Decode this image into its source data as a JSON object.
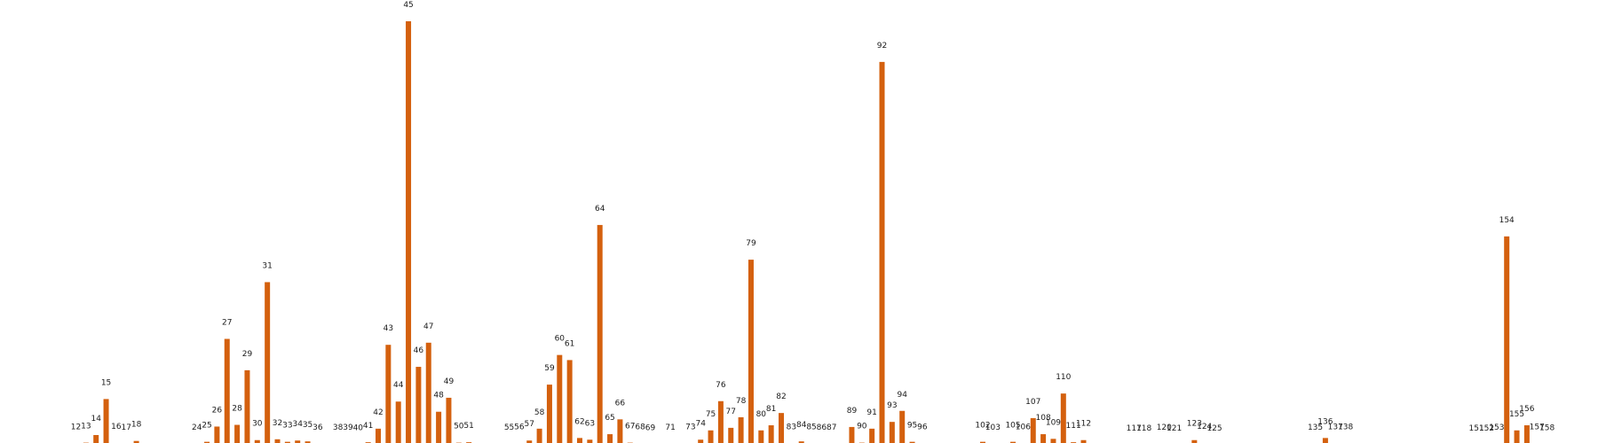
{
  "chart_data": {
    "type": "bar",
    "bar_color": "#d4600e",
    "background": "#ffffff",
    "axes_visible": false,
    "grid": false,
    "title": "",
    "xlabel": "",
    "ylabel": "",
    "ylim": [
      0,
      100
    ],
    "bars": [
      {
        "label": "12",
        "x": 12,
        "value": 0.3
      },
      {
        "label": "13",
        "x": 13,
        "value": 0.5
      },
      {
        "label": "14",
        "x": 14,
        "value": 2.3
      },
      {
        "label": "15",
        "x": 15,
        "value": 10.8
      },
      {
        "label": "16",
        "x": 16,
        "value": 0.4
      },
      {
        "label": "17",
        "x": 17,
        "value": 0.2
      },
      {
        "label": "18",
        "x": 18,
        "value": 0.9
      },
      {
        "label": "24",
        "x": 24,
        "value": 0.2
      },
      {
        "label": "25",
        "x": 25,
        "value": 0.7
      },
      {
        "label": "26",
        "x": 26,
        "value": 4.3
      },
      {
        "label": "27",
        "x": 27,
        "value": 25.0
      },
      {
        "label": "28",
        "x": 28,
        "value": 4.7
      },
      {
        "label": "29",
        "x": 29,
        "value": 17.6
      },
      {
        "label": "30",
        "x": 30,
        "value": 1.1
      },
      {
        "label": "31",
        "x": 31,
        "value": 38.4
      },
      {
        "label": "32",
        "x": 32,
        "value": 1.3
      },
      {
        "label": "33",
        "x": 33,
        "value": 0.7
      },
      {
        "label": "34",
        "x": 34,
        "value": 1.0
      },
      {
        "label": "35",
        "x": 35,
        "value": 0.8
      },
      {
        "label": "36",
        "x": 36,
        "value": 0.2
      },
      {
        "label": "38",
        "x": 38,
        "value": 0.2
      },
      {
        "label": "39",
        "x": 39,
        "value": 0.2
      },
      {
        "label": "40",
        "x": 40,
        "value": 0.1
      },
      {
        "label": "41",
        "x": 41,
        "value": 0.6
      },
      {
        "label": "42",
        "x": 42,
        "value": 3.8
      },
      {
        "label": "43",
        "x": 43,
        "value": 23.6
      },
      {
        "label": "44",
        "x": 44,
        "value": 10.2
      },
      {
        "label": "45",
        "x": 45,
        "value": 100
      },
      {
        "label": "46",
        "x": 46,
        "value": 18.4
      },
      {
        "label": "47",
        "x": 47,
        "value": 24.1
      },
      {
        "label": "48",
        "x": 48,
        "value": 7.8
      },
      {
        "label": "49",
        "x": 49,
        "value": 11.1
      },
      {
        "label": "50",
        "x": 50,
        "value": 0.5
      },
      {
        "label": "51",
        "x": 51,
        "value": 0.6
      },
      {
        "label": "55",
        "x": 55,
        "value": 0.2
      },
      {
        "label": "56",
        "x": 56,
        "value": 0.3
      },
      {
        "label": "57",
        "x": 57,
        "value": 1.0
      },
      {
        "label": "58",
        "x": 58,
        "value": 3.8
      },
      {
        "label": "59",
        "x": 59,
        "value": 14.2
      },
      {
        "label": "60",
        "x": 60,
        "value": 21.2
      },
      {
        "label": "61",
        "x": 61,
        "value": 20.0
      },
      {
        "label": "62",
        "x": 62,
        "value": 1.6
      },
      {
        "label": "63",
        "x": 63,
        "value": 1.2
      },
      {
        "label": "64",
        "x": 64,
        "value": 51.9
      },
      {
        "label": "65",
        "x": 65,
        "value": 2.5
      },
      {
        "label": "66",
        "x": 66,
        "value": 6.0
      },
      {
        "label": "67",
        "x": 67,
        "value": 0.5
      },
      {
        "label": "68",
        "x": 68,
        "value": 0.3
      },
      {
        "label": "69",
        "x": 69,
        "value": 0.1
      },
      {
        "label": "71",
        "x": 71,
        "value": 0.2
      },
      {
        "label": "73",
        "x": 73,
        "value": 0.3
      },
      {
        "label": "74",
        "x": 74,
        "value": 1.2
      },
      {
        "label": "75",
        "x": 75,
        "value": 3.4
      },
      {
        "label": "76",
        "x": 76,
        "value": 10.3
      },
      {
        "label": "77",
        "x": 77,
        "value": 4.0
      },
      {
        "label": "78",
        "x": 78,
        "value": 6.5
      },
      {
        "label": "79",
        "x": 79,
        "value": 43.7
      },
      {
        "label": "80",
        "x": 80,
        "value": 3.4
      },
      {
        "label": "81",
        "x": 81,
        "value": 4.6
      },
      {
        "label": "82",
        "x": 82,
        "value": 7.5
      },
      {
        "label": "83",
        "x": 83,
        "value": 0.3
      },
      {
        "label": "84",
        "x": 84,
        "value": 0.8
      },
      {
        "label": "85",
        "x": 85,
        "value": 0.3
      },
      {
        "label": "86",
        "x": 86,
        "value": 0.2
      },
      {
        "label": "87",
        "x": 87,
        "value": 0.2
      },
      {
        "label": "89",
        "x": 89,
        "value": 4.2
      },
      {
        "label": "90",
        "x": 90,
        "value": 0.5
      },
      {
        "label": "91",
        "x": 91,
        "value": 3.8
      },
      {
        "label": "92",
        "x": 92,
        "value": 90.4
      },
      {
        "label": "93",
        "x": 93,
        "value": 5.4
      },
      {
        "label": "94",
        "x": 94,
        "value": 8.0
      },
      {
        "label": "95",
        "x": 95,
        "value": 0.7
      },
      {
        "label": "96",
        "x": 96,
        "value": 0.3
      },
      {
        "label": "102",
        "x": 102,
        "value": 0.7
      },
      {
        "label": "103",
        "x": 103,
        "value": 0.2
      },
      {
        "label": "105",
        "x": 105,
        "value": 0.7
      },
      {
        "label": "106",
        "x": 106,
        "value": 0.3
      },
      {
        "label": "107",
        "x": 107,
        "value": 6.3
      },
      {
        "label": "108",
        "x": 108,
        "value": 2.5
      },
      {
        "label": "109",
        "x": 109,
        "value": 1.4
      },
      {
        "label": "110",
        "x": 110,
        "value": 12.1
      },
      {
        "label": "111",
        "x": 111,
        "value": 0.6
      },
      {
        "label": "112",
        "x": 112,
        "value": 1.1
      },
      {
        "label": "117",
        "x": 117,
        "value": 0.0
      },
      {
        "label": "118",
        "x": 118,
        "value": 0.0
      },
      {
        "label": "120",
        "x": 120,
        "value": 0.2
      },
      {
        "label": "121",
        "x": 121,
        "value": 0.0
      },
      {
        "label": "123",
        "x": 123,
        "value": 1.1
      },
      {
        "label": "124",
        "x": 124,
        "value": 0.4
      },
      {
        "label": "125",
        "x": 125,
        "value": 0.0
      },
      {
        "label": "135",
        "x": 135,
        "value": 0.2
      },
      {
        "label": "136",
        "x": 136,
        "value": 1.6
      },
      {
        "label": "137",
        "x": 137,
        "value": 0.3
      },
      {
        "label": "138",
        "x": 138,
        "value": 0.3
      },
      {
        "label": "151",
        "x": 151,
        "value": 0.0
      },
      {
        "label": "152",
        "x": 152,
        "value": 0.0
      },
      {
        "label": "153",
        "x": 153,
        "value": 0.2
      },
      {
        "label": "154",
        "x": 154,
        "value": 49.2
      },
      {
        "label": "155",
        "x": 155,
        "value": 3.4
      },
      {
        "label": "156",
        "x": 156,
        "value": 4.6
      },
      {
        "label": "157",
        "x": 157,
        "value": 0.3
      },
      {
        "label": "158",
        "x": 158,
        "value": 0.1
      }
    ]
  }
}
